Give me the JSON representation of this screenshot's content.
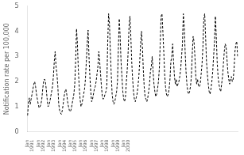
{
  "chart_data": {
    "type": "line",
    "ylabel": "Notification rate per 100,000",
    "categories": [
      "Jan\n1991",
      null,
      null,
      null,
      null,
      null,
      null,
      null,
      null,
      null,
      null,
      null,
      "Jan\n1992",
      null,
      null,
      null,
      null,
      null,
      null,
      null,
      null,
      null,
      null,
      null,
      "Jan\n1993",
      null,
      null,
      null,
      null,
      null,
      null,
      null,
      null,
      null,
      null,
      null,
      "Jan\n1994",
      null,
      null,
      null,
      null,
      null,
      null,
      null,
      null,
      null,
      null,
      null,
      "Jan\n1995",
      null,
      null,
      null,
      null,
      null,
      null,
      null,
      null,
      null,
      null,
      null,
      "Jan\n1996",
      null,
      null,
      null,
      null,
      null,
      null,
      null,
      null,
      null,
      null,
      null,
      "Jan\n1997",
      null,
      null,
      null,
      null,
      null,
      null,
      null,
      null,
      null,
      null,
      null,
      "Jan\n1998",
      null,
      null,
      null,
      null,
      null,
      null,
      null,
      null,
      null,
      null,
      null,
      "Jan\n1999",
      null,
      null,
      null,
      null,
      null,
      null,
      null,
      null,
      null,
      null,
      null,
      "Jan\n2000",
      null,
      null,
      null,
      null,
      null,
      null,
      null,
      null,
      null,
      null,
      null,
      null,
      null,
      null,
      null,
      null,
      null,
      null,
      null,
      null,
      null,
      null,
      null,
      null,
      null,
      null,
      null,
      null,
      null,
      null,
      null,
      null,
      null,
      null,
      null,
      null,
      null,
      null,
      null,
      null,
      null,
      null,
      null,
      null,
      null,
      null,
      null,
      null,
      null,
      null,
      null,
      null,
      null,
      null,
      null,
      null,
      null,
      null,
      null,
      null,
      null,
      null,
      null,
      null,
      null,
      null,
      null,
      null,
      null,
      null,
      null,
      null,
      null,
      null,
      null,
      null,
      null,
      null,
      null,
      null,
      null,
      null,
      null,
      null,
      null,
      null,
      null,
      null,
      null,
      null,
      null,
      null,
      null,
      null,
      null,
      null,
      null,
      null,
      null,
      null,
      null,
      null,
      null,
      null,
      null,
      null,
      null,
      null,
      null,
      null,
      null,
      null,
      null,
      null,
      null,
      null,
      null,
      null,
      null,
      null,
      null,
      null,
      null,
      null,
      null,
      null,
      null,
      null
    ],
    "values": [
      0.65,
      1.2,
      1.35,
      1.1,
      1.3,
      1.5,
      1.7,
      1.9,
      2.0,
      1.8,
      1.5,
      1.3,
      1.1,
      0.95,
      1.0,
      1.1,
      1.3,
      1.7,
      2.0,
      2.1,
      2.0,
      1.7,
      1.3,
      1.0,
      1.05,
      1.2,
      1.4,
      1.6,
      1.8,
      2.2,
      2.8,
      3.2,
      2.6,
      2.3,
      1.8,
      1.1,
      0.85,
      0.75,
      0.7,
      0.85,
      1.1,
      1.4,
      1.6,
      1.7,
      1.5,
      1.2,
      1.0,
      0.85,
      0.8,
      0.9,
      1.1,
      1.3,
      1.5,
      1.9,
      2.8,
      4.1,
      3.5,
      2.5,
      1.8,
      1.3,
      1.0,
      1.1,
      1.3,
      1.5,
      1.7,
      2.1,
      2.8,
      3.5,
      4.05,
      3.0,
      2.2,
      1.6,
      1.2,
      1.3,
      1.5,
      1.7,
      1.8,
      2.0,
      2.3,
      2.6,
      3.2,
      2.8,
      2.3,
      1.8,
      1.4,
      1.3,
      1.35,
      1.5,
      1.6,
      1.8,
      3.5,
      4.7,
      4.3,
      3.2,
      2.3,
      1.5,
      1.2,
      1.1,
      1.2,
      1.4,
      1.6,
      2.0,
      3.3,
      4.5,
      3.8,
      2.8,
      2.2,
      1.6,
      1.3,
      1.2,
      1.4,
      2.0,
      2.5,
      3.2,
      4.2,
      4.6,
      3.8,
      2.8,
      2.1,
      1.6,
      1.3,
      1.2,
      1.35,
      1.5,
      1.8,
      2.2,
      2.8,
      3.5,
      4.0,
      3.4,
      2.5,
      1.8,
      1.4,
      1.3,
      1.2,
      1.35,
      1.6,
      1.9,
      2.4,
      2.6,
      3.0,
      2.4,
      1.9,
      1.6,
      1.4,
      1.5,
      1.7,
      2.0,
      2.5,
      3.5,
      4.6,
      4.7,
      4.0,
      3.2,
      2.3,
      1.8,
      1.5,
      1.4,
      1.5,
      1.7,
      2.1,
      2.8,
      3.0,
      3.5,
      2.8,
      2.2,
      1.9,
      2.1,
      1.8,
      1.9,
      2.0,
      2.2,
      2.5,
      3.0,
      3.5,
      4.7,
      4.2,
      3.2,
      2.4,
      1.9,
      1.6,
      1.5,
      1.6,
      1.8,
      2.2,
      3.1,
      3.8,
      3.6,
      3.0,
      2.2,
      1.9,
      2.1,
      1.8,
      1.8,
      1.9,
      2.3,
      2.7,
      3.4,
      4.5,
      4.7,
      3.8,
      2.8,
      2.3,
      1.9,
      1.6,
      1.5,
      1.7,
      2.0,
      2.4,
      3.0,
      3.6,
      4.6,
      3.8,
      2.8,
      2.2,
      1.9,
      1.7,
      1.6,
      1.9,
      2.2,
      2.7,
      3.2,
      3.5,
      3.4,
      2.9,
      2.4,
      2.1,
      1.9,
      2.1,
      2.2,
      2.0,
      2.1,
      2.5,
      3.2,
      3.5,
      3.6,
      3.0
    ],
    "color": "#000000",
    "line_style": "dashed",
    "ylim": [
      0,
      5
    ],
    "yticks": [
      0,
      1,
      2,
      3,
      4,
      5
    ],
    "grid": false
  }
}
